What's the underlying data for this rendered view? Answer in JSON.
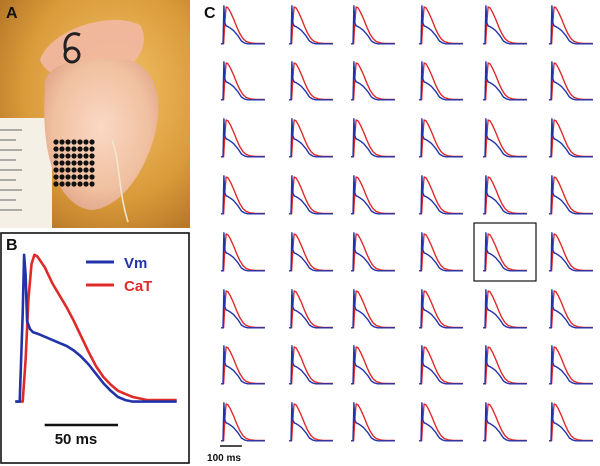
{
  "figure": {
    "panel_a_label": "A",
    "panel_b_label": "B",
    "panel_c_label": "C"
  },
  "colors": {
    "vm": "#2233aa",
    "cat": "#e02a2a",
    "photo_bg": "#d99a3a",
    "heart": "#f0c4a8",
    "dots": "#111111"
  },
  "chart_data": [
    {
      "type": "line",
      "panel": "B",
      "title": "",
      "xlabel": "",
      "ylabel": "",
      "x_unit": "ms",
      "xlim": [
        -5,
        115
      ],
      "ylim": [
        -0.05,
        1.05
      ],
      "legend": [
        "Vm",
        "CaT"
      ],
      "legend_position": "top-right",
      "scale_bar": {
        "label": "50 ms",
        "length_ms": 50
      },
      "series": [
        {
          "name": "Vm",
          "color": "#2233aa",
          "x": [
            0,
            3,
            5,
            6,
            7,
            8,
            10,
            12,
            15,
            20,
            25,
            30,
            35,
            40,
            45,
            50,
            55,
            60,
            65,
            70,
            75,
            80,
            85,
            90,
            95,
            100,
            110
          ],
          "y": [
            0.03,
            0.03,
            0.6,
            0.98,
            0.85,
            0.55,
            0.5,
            0.48,
            0.47,
            0.45,
            0.43,
            0.41,
            0.39,
            0.36,
            0.32,
            0.27,
            0.21,
            0.15,
            0.1,
            0.06,
            0.04,
            0.03,
            0.03,
            0.03,
            0.03,
            0.03,
            0.03
          ]
        },
        {
          "name": "CaT",
          "color": "#e02a2a",
          "x": [
            0,
            5,
            7,
            9,
            11,
            13,
            15,
            20,
            25,
            30,
            35,
            40,
            45,
            50,
            55,
            60,
            65,
            70,
            75,
            80,
            85,
            90,
            95,
            100,
            110
          ],
          "y": [
            0.03,
            0.03,
            0.3,
            0.7,
            0.92,
            0.98,
            0.97,
            0.9,
            0.8,
            0.72,
            0.64,
            0.55,
            0.45,
            0.35,
            0.26,
            0.19,
            0.14,
            0.1,
            0.08,
            0.06,
            0.05,
            0.04,
            0.04,
            0.04,
            0.04
          ]
        }
      ]
    },
    {
      "type": "line",
      "panel": "C",
      "title": "",
      "grid_rows": 8,
      "grid_cols": 6,
      "highlighted_cell": {
        "row": 5,
        "col": 5
      },
      "scale_bar": {
        "label": "100 ms",
        "length_ms": 100
      },
      "x_unit": "ms",
      "xlim": [
        -10,
        150
      ],
      "ylim": [
        -0.05,
        1.05
      ],
      "series": [
        {
          "name": "Vm",
          "color": "#2233aa",
          "x": [
            0,
            6,
            9,
            12,
            16,
            22,
            30,
            40,
            55,
            65,
            75,
            85,
            100,
            120,
            140
          ],
          "y": [
            0.03,
            0.03,
            0.98,
            0.55,
            0.48,
            0.46,
            0.42,
            0.36,
            0.22,
            0.1,
            0.05,
            0.03,
            0.03,
            0.03,
            0.03
          ]
        },
        {
          "name": "CaT",
          "color": "#e02a2a",
          "x": [
            0,
            8,
            12,
            16,
            22,
            30,
            40,
            50,
            60,
            70,
            80,
            95,
            110,
            140
          ],
          "y": [
            0.03,
            0.03,
            0.6,
            0.95,
            0.93,
            0.82,
            0.65,
            0.45,
            0.28,
            0.16,
            0.09,
            0.05,
            0.04,
            0.04
          ]
        }
      ]
    }
  ]
}
